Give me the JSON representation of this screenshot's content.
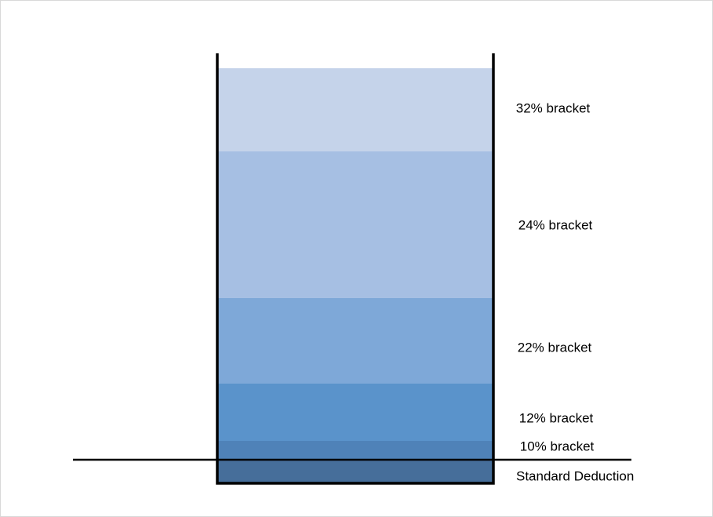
{
  "layers": [
    {
      "label": "32% bracket"
    },
    {
      "label": "24% bracket"
    },
    {
      "label": "22% bracket"
    },
    {
      "label": "12% bracket"
    },
    {
      "label": "10% bracket"
    },
    {
      "label": "Standard Deduction"
    }
  ]
}
